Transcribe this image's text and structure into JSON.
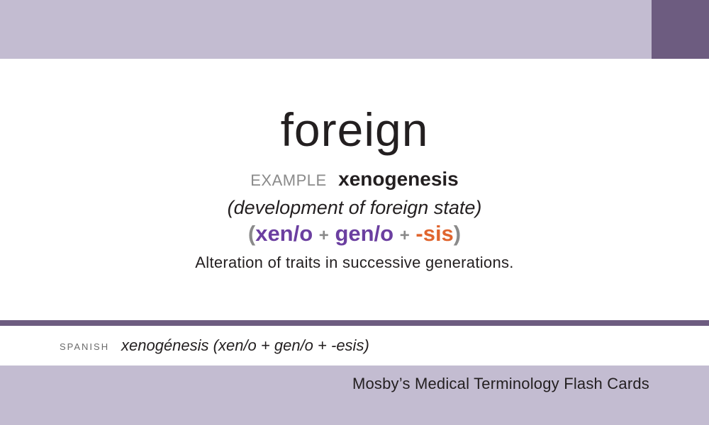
{
  "card": {
    "term": "foreign",
    "example_label": "EXAMPLE",
    "example_word": "xenogenesis",
    "definition": "(development of foreign state)",
    "breakdown": {
      "open_paren": "(",
      "part1": "xen/o",
      "plus1": "+",
      "part2": "gen/o",
      "plus2": "+",
      "part3": "-sis",
      "close_paren": ")"
    },
    "explanation": "Alteration of traits in successive generations."
  },
  "spanish": {
    "label": "SPANISH",
    "text": "xenogénesis (xen/o + gen/o + -esis)"
  },
  "footer": {
    "publisher": "Mosby’s Medical Terminology Flash Cards"
  },
  "colors": {
    "band": "#c3bcd1",
    "accent": "#6d5c80",
    "root_purple": "#6b3fa0",
    "suffix_orange": "#e0652e"
  }
}
